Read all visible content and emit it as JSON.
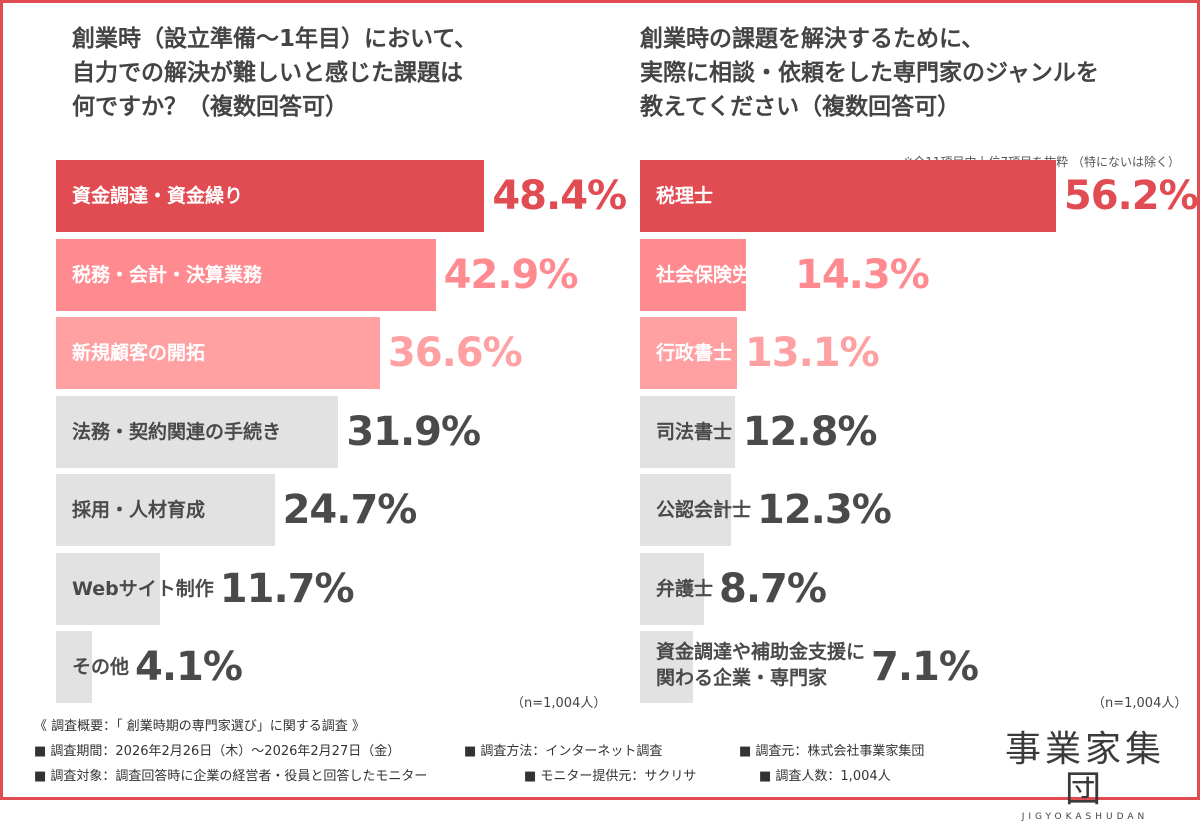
{
  "colors": {
    "frame": "#e14b52",
    "top": "#e14b52",
    "second": "#ff8a8f",
    "third": "#ffa0a3",
    "gray": "#e2e2e2",
    "text_dark": "#4a4a4a"
  },
  "left_panel": {
    "title_lines": [
      "創業時（設立準備〜1年目）において、",
      "自力での解決が難しいと感じた課題は",
      "何ですか？（複数回答可）"
    ],
    "n_note": "（n=1,004人）"
  },
  "right_panel": {
    "title_lines": [
      "創業時の課題を解決するために、",
      "実際に相談・依頼をした専門家のジャンルを",
      "教えてください（複数回答可）"
    ],
    "footnote": "※全11項目中上位7項目を抜粋 （特にないは除く）",
    "n_note": "（n=1,004人）"
  },
  "chart_data": [
    {
      "type": "bar",
      "orientation": "horizontal",
      "categories": [
        "資金調達・資金繰り",
        "税務・会計・決算業務",
        "新規顧客の開拓",
        "法務・契約関連の手続き",
        "採用・人材育成",
        "Webサイト制作",
        "その他"
      ],
      "values": [
        48.4,
        42.9,
        36.6,
        31.9,
        24.7,
        11.7,
        4.1
      ],
      "value_labels": [
        "48.4%",
        "42.9%",
        "36.6%",
        "31.9%",
        "24.7%",
        "11.7%",
        "4.1%"
      ],
      "unit": "%"
    },
    {
      "type": "bar",
      "orientation": "horizontal",
      "categories": [
        "税理士",
        "社会保険労務士",
        "行政書士",
        "司法書士",
        "公認会計士",
        "弁護士",
        "資金調達や補助金支援に\n関わる企業・専門家"
      ],
      "values": [
        56.2,
        14.3,
        13.1,
        12.8,
        12.3,
        8.7,
        7.1
      ],
      "value_labels": [
        "56.2%",
        "14.3%",
        "13.1%",
        "12.8%",
        "12.3%",
        "8.7%",
        "7.1%"
      ],
      "unit": "%"
    }
  ],
  "survey": {
    "heading": "《 調査概要：「 創業時期の専門家選び」に関する調査 》",
    "period": "■ 調査期間：2026年2月26日（木）〜2026年2月27日（金）",
    "method": "■ 調査方法：インターネット調査",
    "source": "■ 調査元：株式会社事業家集団",
    "target": "■ 調査対象：調査回答時に企業の経営者・役員と回答したモニター",
    "provider": "■ モニター提供元：サクリサ",
    "count": "■ 調査人数：1,004人"
  },
  "brand": {
    "name": "事業家集団",
    "romaji": "JIGYOKASHUDAN"
  }
}
